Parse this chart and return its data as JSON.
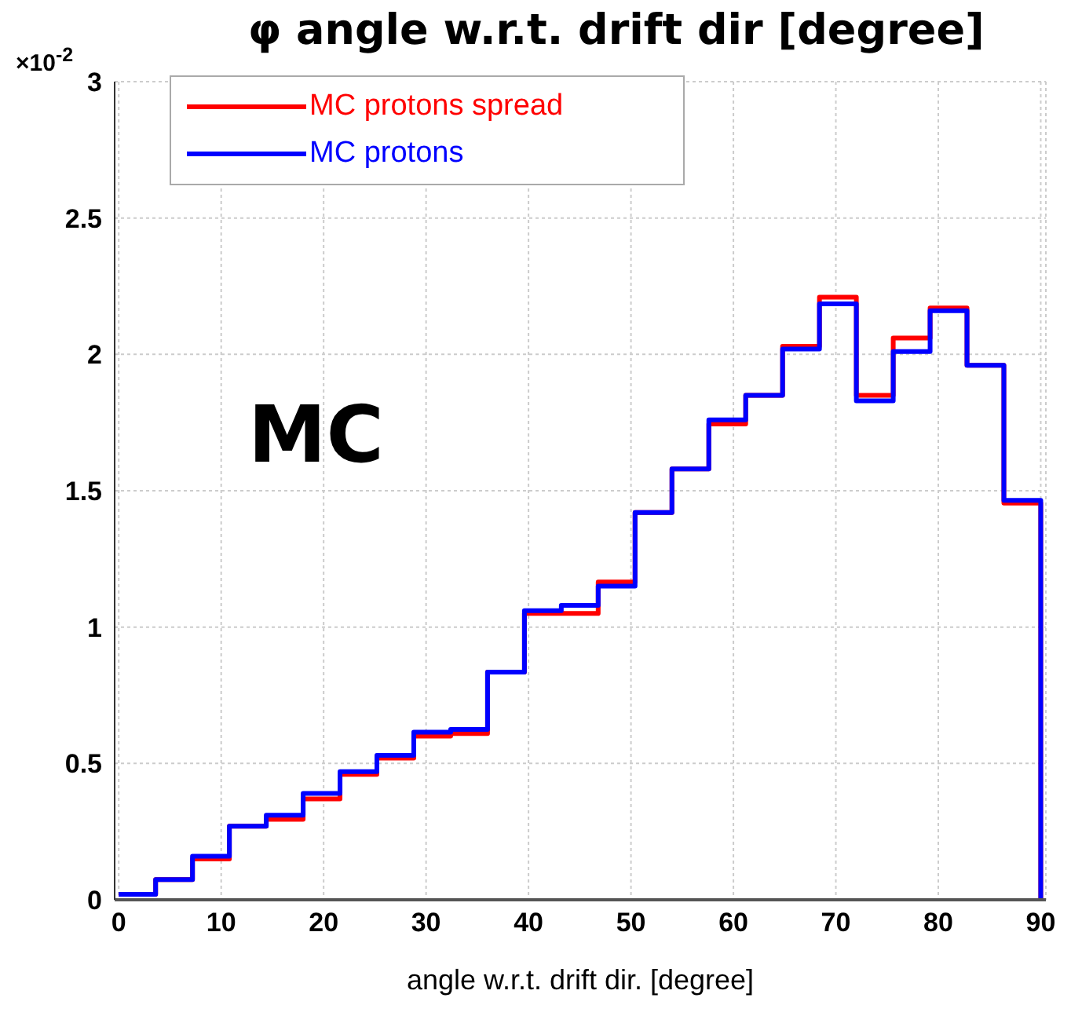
{
  "chart_data": {
    "type": "histogram",
    "title": "φ angle w.r.t. drift dir [degree]",
    "xlabel": "angle w.r.t. drift dir. [degree]",
    "annotations": [
      "×10$^{-2}$",
      "MC"
    ],
    "bins": [
      0,
      3.6,
      7.2,
      10.8,
      14.4,
      18,
      21.6,
      25.2,
      28.8,
      32.4,
      36,
      39.6,
      43.2,
      46.8,
      50.4,
      54,
      57.6,
      61.2,
      64.8,
      68.4,
      72,
      75.6,
      79.2,
      82.8,
      86.4,
      90
    ],
    "series": [
      {
        "name": "MC protons spread",
        "color": "#ff0000",
        "values": [
          0.02,
          0.074,
          0.15,
          0.27,
          0.295,
          0.37,
          0.46,
          0.52,
          0.6,
          0.61,
          0.835,
          1.05,
          1.05,
          1.165,
          1.42,
          1.58,
          1.745,
          1.85,
          2.03,
          2.21,
          1.85,
          2.06,
          2.17,
          1.96,
          1.455
        ]
      },
      {
        "name": "MC protons",
        "color": "#0000ff",
        "values": [
          0.02,
          0.074,
          0.16,
          0.27,
          0.31,
          0.39,
          0.47,
          0.53,
          0.615,
          0.625,
          0.835,
          1.06,
          1.08,
          1.15,
          1.42,
          1.58,
          1.76,
          1.85,
          2.02,
          2.185,
          1.83,
          2.01,
          2.16,
          1.96,
          1.465
        ]
      }
    ],
    "xlim": [
      -0.4,
      90.5
    ],
    "xticks": [
      0,
      10,
      20,
      30,
      40,
      50,
      60,
      70,
      80,
      90
    ],
    "ylim": [
      0,
      3
    ],
    "yticks": [
      0,
      0.5,
      1,
      1.5,
      2,
      2.5,
      3
    ],
    "grid": true,
    "legend": "top left"
  }
}
